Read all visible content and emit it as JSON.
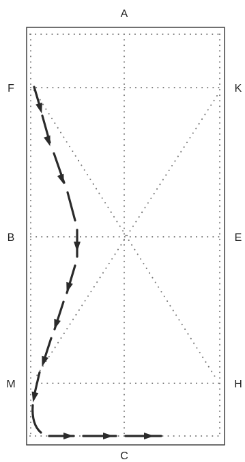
{
  "colors": {
    "route": "#2a2a2a",
    "guide": "#777777",
    "border": "#333333",
    "background": "#ffffff"
  },
  "markers": {
    "A": "A",
    "C": "C",
    "F": "F",
    "K": "K",
    "B": "B",
    "E": "E",
    "M": "M",
    "H": "H"
  }
}
